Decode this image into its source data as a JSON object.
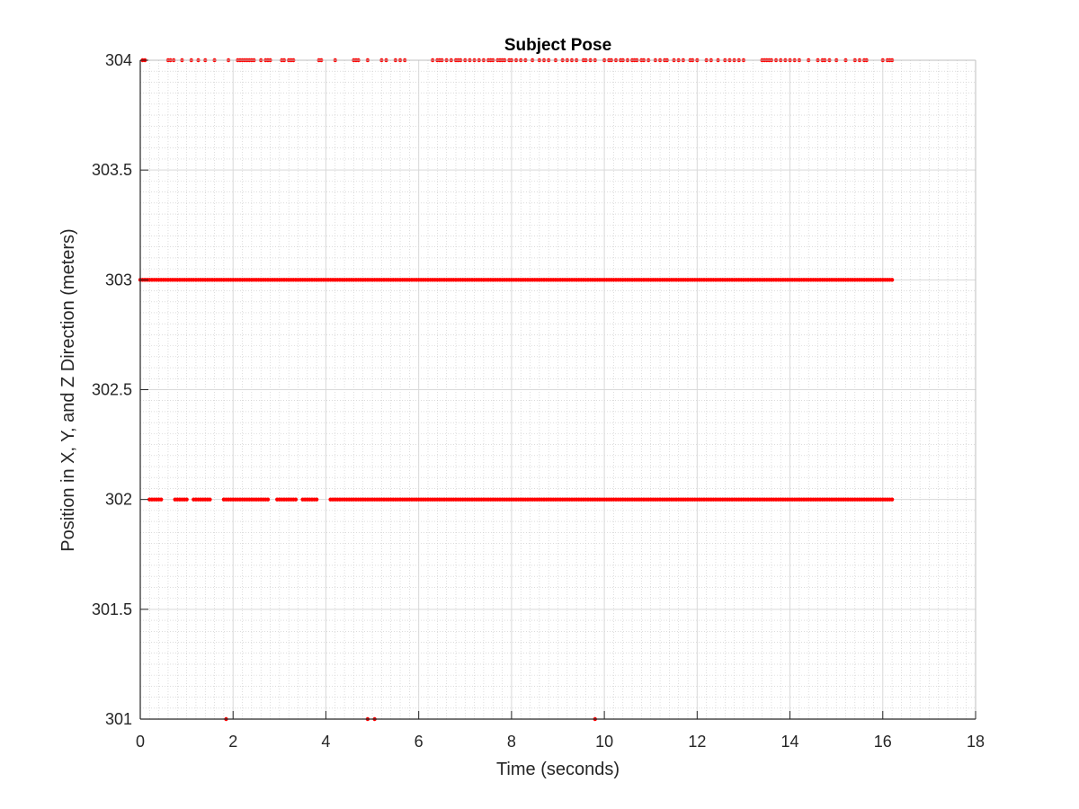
{
  "chart_data": {
    "type": "scatter",
    "title": "Subject Pose",
    "xlabel": "Time (seconds)",
    "ylabel": "Position in X, Y, and Z Direction (meters)",
    "xlim": [
      0,
      18
    ],
    "ylim": [
      301,
      304
    ],
    "xticks": [
      0,
      2,
      4,
      6,
      8,
      10,
      12,
      14,
      16,
      18
    ],
    "yticks": [
      301,
      301.5,
      302,
      302.5,
      303,
      303.5,
      304
    ],
    "xtick_labels": [
      "0",
      "2",
      "4",
      "6",
      "8",
      "10",
      "12",
      "14",
      "16",
      "18"
    ],
    "ytick_labels": [
      "301",
      "301.5",
      "302",
      "302.5",
      "303",
      "303.5",
      "304"
    ],
    "grid": true,
    "minor_grid": true,
    "marker_color": "#ff0000",
    "series": [
      {
        "values": [
          {
            "y": 304,
            "x": [
              0.05,
              0.1,
              0.6,
              0.65,
              0.72,
              0.9,
              1.1,
              1.25,
              1.4,
              1.6,
              1.9,
              2.1,
              2.15,
              2.2,
              2.25,
              2.3,
              2.35,
              2.4,
              2.45,
              2.6,
              2.7,
              2.75,
              2.8,
              3.05,
              3.1,
              3.2,
              3.25,
              3.3,
              3.85,
              3.9,
              4.2,
              4.6,
              4.65,
              4.7,
              4.9,
              5.2,
              5.3,
              5.5,
              5.6,
              5.7,
              6.3,
              6.4,
              6.45,
              6.5,
              6.6,
              6.7,
              6.8,
              6.85,
              6.9,
              7.0,
              7.1,
              7.2,
              7.3,
              7.4,
              7.5,
              7.55,
              7.6,
              7.7,
              7.75,
              7.8,
              7.85,
              7.95,
              8.0,
              8.1,
              8.2,
              8.3,
              8.45,
              8.6,
              8.7,
              8.8,
              8.95,
              9.1,
              9.2,
              9.3,
              9.4,
              9.55,
              9.6,
              9.7,
              9.8,
              10.0,
              10.1,
              10.15,
              10.25,
              10.35,
              10.4,
              10.5,
              10.6,
              10.65,
              10.7,
              10.8,
              10.85,
              10.95,
              11.1,
              11.2,
              11.3,
              11.35,
              11.5,
              11.6,
              11.7,
              11.85,
              11.9,
              12.0,
              12.2,
              12.3,
              12.45,
              12.6,
              12.7,
              12.8,
              12.9,
              13.0,
              13.4,
              13.45,
              13.5,
              13.55,
              13.6,
              13.7,
              13.8,
              13.9,
              14.0,
              14.1,
              14.2,
              14.4,
              14.6,
              14.7,
              14.75,
              14.85,
              15.0,
              15.2,
              15.4,
              15.5,
              15.6,
              15.65,
              16.0,
              16.1,
              16.15,
              16.2
            ]
          },
          {
            "y": 303,
            "x_range": [
              0.0,
              16.2
            ],
            "step": 0.05
          },
          {
            "y": 302,
            "x_range": [
              0.2,
              16.2
            ],
            "step": 0.05,
            "gaps": [
              [
                0.45,
                0.75
              ],
              [
                1.05,
                1.15
              ],
              [
                1.55,
                1.8
              ],
              [
                2.75,
                2.9
              ],
              [
                3.35,
                3.45
              ],
              [
                3.8,
                4.05
              ]
            ]
          },
          {
            "y": 301,
            "x": [
              1.85,
              4.9,
              5.05,
              9.8
            ]
          }
        ]
      }
    ]
  }
}
